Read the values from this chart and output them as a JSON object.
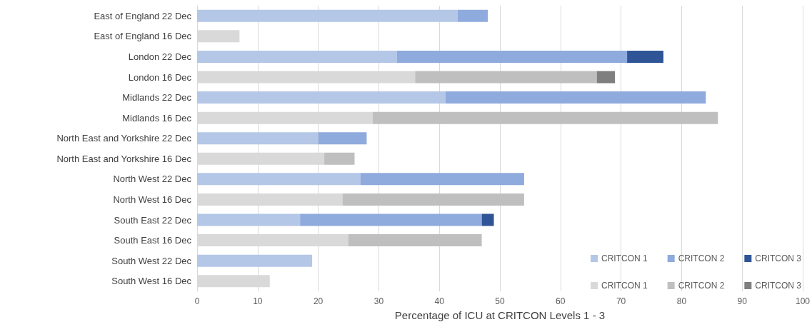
{
  "chart_data": {
    "type": "bar",
    "orientation": "horizontal",
    "stacked": true,
    "xlabel": "Percentage of ICU at CRITCON Levels 1 - 3",
    "categories": [
      "East of England 22 Dec",
      "East of England 16 Dec",
      "London 22 Dec",
      "London 16 Dec",
      "Midlands 22 Dec",
      "Midlands 16 Dec",
      "North East and Yorkshire 22 Dec",
      "North East and Yorkshire 16 Dec",
      "North West 22 Dec",
      "North West 16 Dec",
      "South East 22 Dec",
      "South East 16 Dec",
      "South West 22 Dec",
      "South West 16 Dec"
    ],
    "series": [
      {
        "name": "CRITCON 1",
        "color": "#b4c7e7",
        "values": [
          43,
          null,
          33,
          null,
          41,
          null,
          20,
          null,
          27,
          null,
          17,
          null,
          19,
          null
        ]
      },
      {
        "name": "CRITCON 2",
        "color": "#8faadc",
        "values": [
          5,
          null,
          38,
          null,
          43,
          null,
          8,
          null,
          27,
          null,
          30,
          null,
          null,
          null
        ]
      },
      {
        "name": "CRITCON 3",
        "color": "#2f5597",
        "values": [
          null,
          null,
          6,
          null,
          null,
          null,
          null,
          null,
          null,
          null,
          2,
          null,
          null,
          null
        ]
      },
      {
        "name": "CRITCON 1",
        "color": "#d9d9d9",
        "values": [
          null,
          7,
          null,
          36,
          null,
          29,
          null,
          21,
          null,
          24,
          null,
          25,
          null,
          12
        ]
      },
      {
        "name": "CRITCON 2",
        "color": "#bfbfbf",
        "values": [
          null,
          null,
          null,
          30,
          null,
          57,
          null,
          5,
          null,
          30,
          null,
          22,
          null,
          null
        ]
      },
      {
        "name": "CRITCON 3",
        "color": "#7f7f7f",
        "values": [
          null,
          null,
          null,
          3,
          null,
          null,
          null,
          null,
          null,
          null,
          null,
          null,
          null,
          null
        ]
      }
    ],
    "xlim": [
      0,
      100
    ],
    "xticks": [
      0,
      10,
      20,
      30,
      40,
      50,
      60,
      70,
      80,
      90,
      100
    ],
    "grid": "x",
    "legend": "bottom right"
  }
}
